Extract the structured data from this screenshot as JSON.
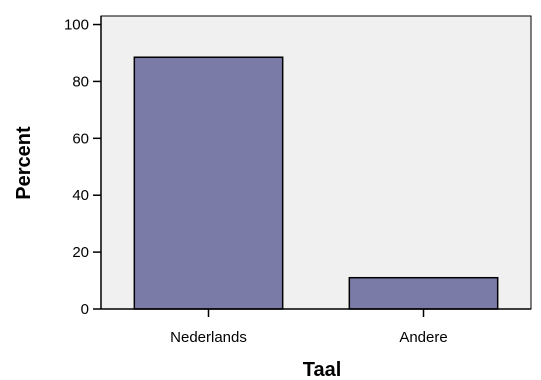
{
  "chart_data": {
    "type": "bar",
    "categories": [
      "Nederlands",
      "Andere"
    ],
    "values": [
      88.5,
      11.0
    ],
    "xlabel": "Taal",
    "ylabel": "Percent",
    "ylim": [
      0,
      103
    ],
    "yticks": [
      0,
      20,
      40,
      60,
      80,
      100
    ],
    "grid": false,
    "colors": {
      "plot_background": "#f0f0f0",
      "bar_fill": "#7b7ba8",
      "bar_stroke": "#000000"
    }
  }
}
